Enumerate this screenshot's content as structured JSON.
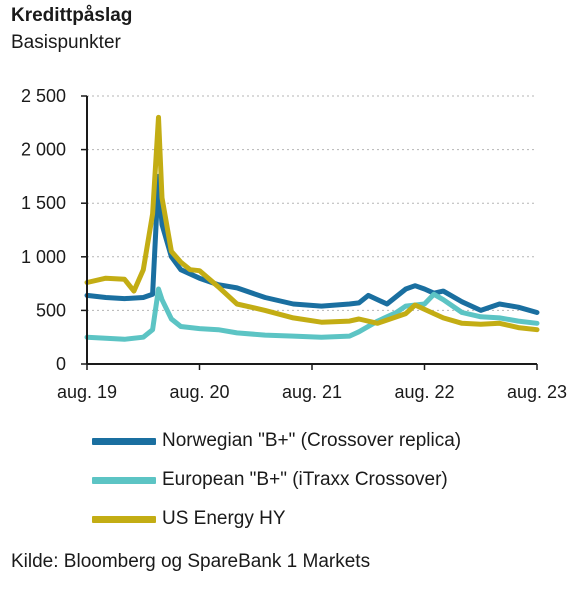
{
  "title": "Kredittpåslag",
  "subtitle": "Basispunkter",
  "source": "Kilde: Bloomberg og SpareBank 1 Markets",
  "chart_data": {
    "type": "line",
    "ylim": [
      0,
      2500
    ],
    "yticks": [
      0,
      500,
      1000,
      1500,
      2000,
      2500
    ],
    "ytick_labels": [
      "0",
      "500",
      "1 000",
      "1 500",
      "2 000",
      "2 500"
    ],
    "xlim": [
      "2019-08",
      "2023-08"
    ],
    "xticks": [
      "2019-08",
      "2020-08",
      "2021-08",
      "2022-08",
      "2023-08"
    ],
    "xtick_labels": [
      "aug. 19",
      "aug. 20",
      "aug. 21",
      "aug. 22",
      "aug. 23"
    ],
    "grid": "horizontal dashed",
    "legend_position": "bottom",
    "series": [
      {
        "name": "Norwegian \"B+\" (Crossover replica)",
        "color": "#1a6fa0",
        "x": [
          "2019-08",
          "2019-10",
          "2019-12",
          "2020-02",
          "2020-03",
          "2020-03-20",
          "2020-04",
          "2020-05",
          "2020-06",
          "2020-08",
          "2020-10",
          "2020-12",
          "2021-03",
          "2021-06",
          "2021-09",
          "2021-12",
          "2022-01",
          "2022-02",
          "2022-04",
          "2022-06",
          "2022-07",
          "2022-08",
          "2022-09",
          "2022-10",
          "2022-12",
          "2023-02",
          "2023-04",
          "2023-06",
          "2023-08"
        ],
        "values": [
          640,
          620,
          610,
          620,
          650,
          1750,
          1300,
          1000,
          880,
          800,
          740,
          710,
          620,
          560,
          540,
          560,
          570,
          640,
          560,
          700,
          730,
          700,
          660,
          680,
          580,
          500,
          560,
          530,
          480
        ]
      },
      {
        "name": "European \"B+\" (iTraxx Crossover)",
        "color": "#5cc4c4",
        "x": [
          "2019-08",
          "2019-10",
          "2019-12",
          "2020-02",
          "2020-03",
          "2020-03-20",
          "2020-04",
          "2020-05",
          "2020-06",
          "2020-08",
          "2020-10",
          "2020-12",
          "2021-03",
          "2021-06",
          "2021-09",
          "2021-12",
          "2022-01",
          "2022-03",
          "2022-05",
          "2022-06",
          "2022-08",
          "2022-09",
          "2022-10",
          "2022-12",
          "2023-02",
          "2023-04",
          "2023-06",
          "2023-08"
        ],
        "values": [
          250,
          240,
          230,
          250,
          320,
          700,
          600,
          420,
          350,
          330,
          320,
          290,
          270,
          260,
          250,
          260,
          300,
          400,
          480,
          540,
          560,
          650,
          600,
          480,
          440,
          430,
          400,
          380
        ]
      },
      {
        "name": "US Energy HY",
        "color": "#c3ad14",
        "x": [
          "2019-08",
          "2019-10",
          "2019-12",
          "2020-01",
          "2020-02",
          "2020-03",
          "2020-03-20",
          "2020-04",
          "2020-05",
          "2020-06",
          "2020-07",
          "2020-08",
          "2020-10",
          "2020-12",
          "2021-03",
          "2021-06",
          "2021-09",
          "2021-12",
          "2022-01",
          "2022-03",
          "2022-06",
          "2022-07",
          "2022-09",
          "2022-10",
          "2022-12",
          "2023-02",
          "2023-04",
          "2023-06",
          "2023-08"
        ],
        "values": [
          760,
          800,
          790,
          680,
          880,
          1400,
          2300,
          1550,
          1050,
          950,
          880,
          870,
          720,
          560,
          500,
          430,
          390,
          400,
          420,
          380,
          470,
          550,
          470,
          430,
          380,
          370,
          380,
          340,
          320
        ]
      }
    ]
  }
}
